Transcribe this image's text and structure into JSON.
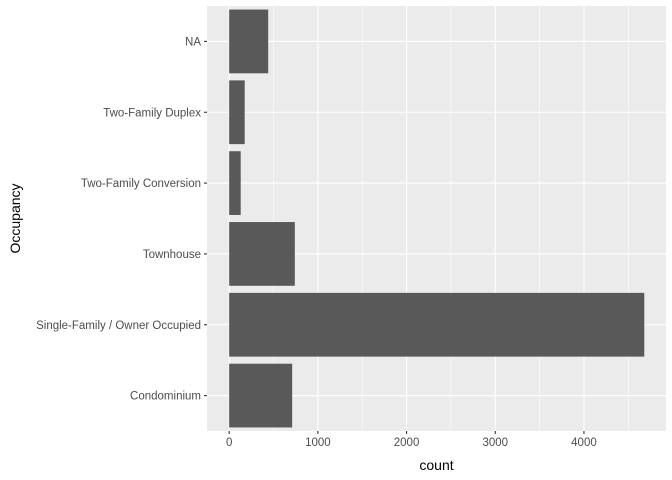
{
  "chart_data": {
    "type": "bar",
    "orientation": "horizontal",
    "categories": [
      "Condominium",
      "Single-Family / Owner Occupied",
      "Townhouse",
      "Two-Family Conversion",
      "Two-Family Duplex",
      "NA"
    ],
    "values": [
      710,
      4680,
      740,
      130,
      175,
      440
    ],
    "xlabel": "count",
    "ylabel": "Occupancy",
    "xlim": [
      -250,
      4925
    ],
    "xticks": [
      0,
      1000,
      2000,
      3000,
      4000
    ],
    "xtick_labels": [
      "0",
      "1000",
      "2000",
      "3000",
      "4000"
    ],
    "grid": true,
    "colors": {
      "panel_background": "#ebebeb",
      "grid_major": "#ffffff",
      "bar_fill": "#595959",
      "tick_text": "#4d4d4d",
      "title_text": "#000000"
    }
  }
}
